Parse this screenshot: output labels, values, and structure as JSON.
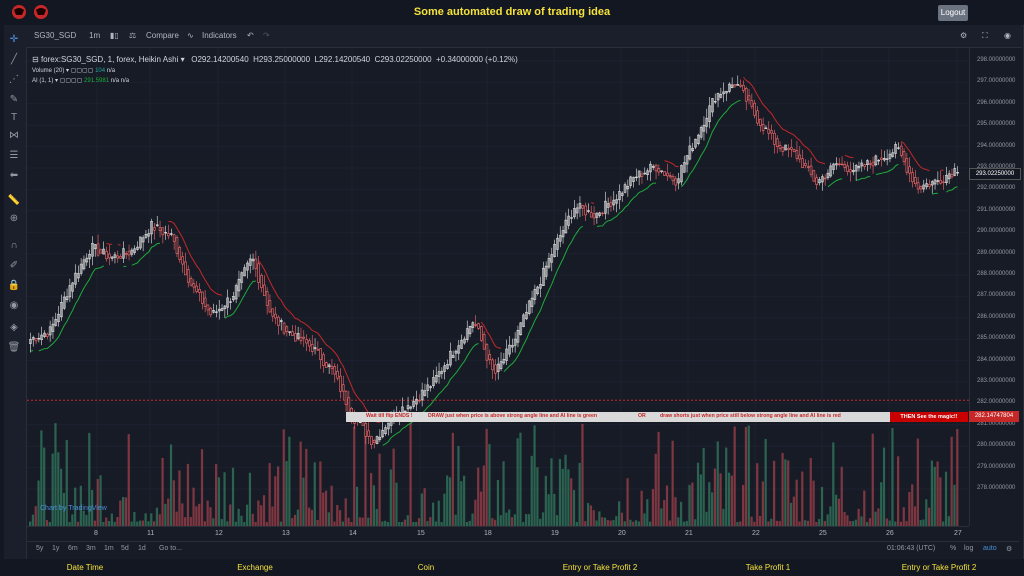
{
  "app": {
    "title": "Some automated draw of trading idea",
    "logout_label": "Logout"
  },
  "toolbar": {
    "symbol": "SG30_SGD",
    "interval": "1m",
    "compare_label": "Compare",
    "indicators_label": "Indicators"
  },
  "legend": {
    "main": "forex:SG30_SGD, 1, forex, Heikin Ashi",
    "open": "O292.14200540",
    "high": "H293.25000000",
    "low": "L292.14200540",
    "close": "C293.02250000",
    "change": "+0.34000000 (+0.12%)",
    "volume_label": "Volume (20)",
    "volume_value": "104",
    "volume_na": "n/a",
    "ai_label": "AI (1, 1)",
    "ai_value": "291.5981",
    "ai_na1": "n/a",
    "ai_na2": "n/a"
  },
  "price_axis": [
    "298.00000000",
    "297.00000000",
    "296.00000000",
    "295.00000000",
    "294.00000000",
    "293.00000000",
    "292.00000000",
    "291.00000000",
    "290.00000000",
    "289.00000000",
    "288.00000000",
    "287.00000000",
    "286.00000000",
    "285.00000000",
    "284.00000000",
    "283.00000000",
    "282.00000000",
    "281.00000000",
    "280.00000000",
    "279.00000000",
    "278.00000000"
  ],
  "price_current": "293.02250000",
  "price_marker": "282.14747804",
  "time_axis": [
    "8",
    "11",
    "12",
    "13",
    "14",
    "15",
    "18",
    "19",
    "20",
    "21",
    "22",
    "25",
    "26",
    "27"
  ],
  "banner": {
    "part1": "Wait till flip ENDS  !",
    "part2": "DRAW just when  price is above strong angle line and AI line is green",
    "part3": "OR",
    "part4": "draw shorts just when price still below strong angle line and AI line is red",
    "magic": "THEN See the magic!!"
  },
  "watermark": "Chart by TradingView",
  "bottom_bar": {
    "ranges": [
      "5y",
      "1y",
      "6m",
      "3m",
      "1m",
      "5d",
      "1d"
    ],
    "goto": "Go to...",
    "clock": "01:06:43 (UTC)",
    "percent": "%",
    "log": "log",
    "auto": "auto"
  },
  "footer": [
    "Date Time",
    "Exchange",
    "Coin",
    "Entry or Take Profit 2",
    "Take Profit 1",
    "Entry or Take Profit 2"
  ],
  "chart_data": {
    "type": "candlestick",
    "title": "forex:SG30_SGD, 1, forex, Heikin Ashi",
    "ylim": [
      277.5,
      298.5
    ],
    "x": [
      "8",
      "11",
      "12",
      "13",
      "14",
      "15",
      "18",
      "19",
      "20",
      "21",
      "22",
      "25",
      "26",
      "27"
    ],
    "close_path": [
      285.0,
      285.4,
      287.6,
      289.3,
      288.8,
      289.1,
      290.3,
      289.8,
      287.5,
      286.1,
      287.0,
      288.8,
      286.0,
      285.2,
      284.6,
      283.5,
      281.4,
      280.2,
      281.5,
      282.1,
      283.0,
      284.5,
      285.9,
      283.3,
      284.9,
      287.1,
      289.3,
      291.2,
      290.8,
      291.6,
      292.6,
      293.1,
      292.4,
      294.4,
      296.4,
      297.0,
      295.4,
      294.1,
      293.6,
      292.3,
      293.2,
      292.9,
      293.4,
      293.9,
      292.1,
      292.4,
      293.0
    ],
    "series": [
      {
        "name": "Volume (20)",
        "last": 104
      },
      {
        "name": "AI (1, 1)",
        "last": 291.5981
      }
    ],
    "colors": {
      "up": "#26a69a",
      "down": "#ef5350",
      "candle_up": "#e8e8e8",
      "candle_down": "#ff6b6b",
      "ai_up": "#1faa3a",
      "ai_down": "#c62828"
    }
  }
}
